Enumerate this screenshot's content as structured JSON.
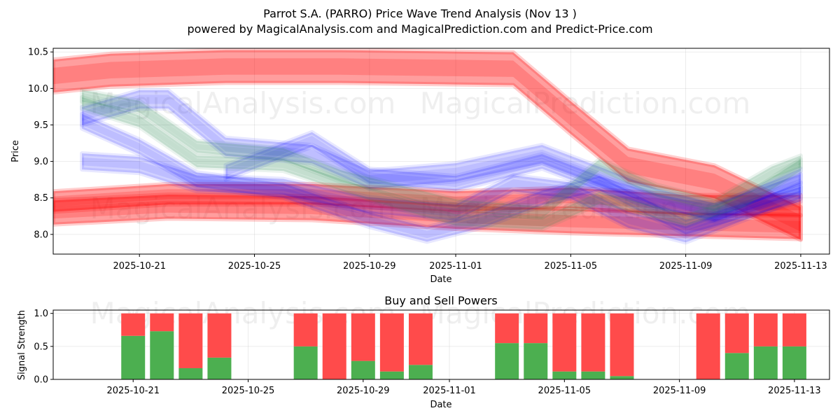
{
  "title_line1": "Parrot S.A. (PARRO) Price Wave Trend Analysis (Nov 13 )",
  "title_line2": "powered by MagicalAnalysis.com and MagicalPrediction.com and Predict-Price.com",
  "watermarks": [
    "MagicalAnalysis.com",
    "MagicalPrediction.com"
  ],
  "colors": {
    "red_band": "#ff0000",
    "blue_band": "#0000ff",
    "green_band": "#2e8b57",
    "buy": "#4caf50",
    "sell": "#ff4b4b"
  },
  "chart_data": [
    {
      "type": "area",
      "title": "",
      "xlabel": "Date",
      "ylabel": "Price",
      "xlim": [
        "2025-10-18",
        "2025-11-14"
      ],
      "ylim": [
        7.73,
        10.55
      ],
      "x_ticks": [
        "2025-10-21",
        "2025-10-25",
        "2025-10-29",
        "2025-11-01",
        "2025-11-05",
        "2025-11-09",
        "2025-11-13"
      ],
      "y_ticks": [
        8.0,
        8.5,
        9.0,
        9.5,
        10.0,
        10.5
      ],
      "grid": true,
      "series": [
        {
          "name": "Red wave (upper)",
          "color": "red",
          "width": 0.45,
          "points": [
            [
              "2025-10-18",
              10.17
            ],
            [
              "2025-10-20",
              10.25
            ],
            [
              "2025-10-24",
              10.3
            ],
            [
              "2025-10-28",
              10.3
            ],
            [
              "2025-11-01",
              10.28
            ],
            [
              "2025-11-03",
              10.27
            ],
            [
              "2025-11-05",
              9.6
            ],
            [
              "2025-11-07",
              8.95
            ],
            [
              "2025-11-10",
              8.72
            ],
            [
              "2025-11-13",
              8.15
            ]
          ]
        },
        {
          "name": "Red wave (lower)",
          "color": "red",
          "width": 0.33,
          "points": [
            [
              "2025-10-18",
              8.3
            ],
            [
              "2025-10-22",
              8.38
            ],
            [
              "2025-10-27",
              8.36
            ],
            [
              "2025-11-01",
              8.24
            ],
            [
              "2025-11-05",
              8.18
            ],
            [
              "2025-11-09",
              8.14
            ],
            [
              "2025-11-13",
              8.1
            ]
          ]
        },
        {
          "name": "Red wave (mid)",
          "color": "red",
          "width": 0.28,
          "points": [
            [
              "2025-10-18",
              8.45
            ],
            [
              "2025-10-22",
              8.55
            ],
            [
              "2025-10-27",
              8.55
            ],
            [
              "2025-11-01",
              8.45
            ],
            [
              "2025-11-05",
              8.5
            ],
            [
              "2025-11-09",
              8.4
            ],
            [
              "2025-11-13",
              8.4
            ]
          ]
        },
        {
          "name": "Blue wave 1",
          "color": "blue",
          "width": 0.25,
          "points": [
            [
              "2025-10-19",
              9.62
            ],
            [
              "2025-10-21",
              9.85
            ],
            [
              "2025-10-22",
              9.85
            ],
            [
              "2025-10-24",
              9.2
            ],
            [
              "2025-10-27",
              9.1
            ],
            [
              "2025-10-29",
              8.75
            ],
            [
              "2025-11-01",
              8.85
            ],
            [
              "2025-11-04",
              9.1
            ],
            [
              "2025-11-06",
              8.8
            ],
            [
              "2025-11-08",
              8.5
            ],
            [
              "2025-11-10",
              8.3
            ],
            [
              "2025-11-13",
              8.7
            ]
          ]
        },
        {
          "name": "Blue wave 2",
          "color": "blue",
          "width": 0.22,
          "points": [
            [
              "2025-10-19",
              9.0
            ],
            [
              "2025-10-21",
              8.95
            ],
            [
              "2025-10-23",
              8.7
            ],
            [
              "2025-10-26",
              8.65
            ],
            [
              "2025-10-29",
              8.4
            ],
            [
              "2025-11-01",
              8.3
            ],
            [
              "2025-11-03",
              8.7
            ],
            [
              "2025-11-05",
              8.6
            ],
            [
              "2025-11-07",
              8.2
            ],
            [
              "2025-11-09",
              8.0
            ],
            [
              "2025-11-13",
              8.6
            ]
          ]
        },
        {
          "name": "Blue wave 3",
          "color": "blue",
          "width": 0.2,
          "points": [
            [
              "2025-10-19",
              9.55
            ],
            [
              "2025-10-21",
              9.2
            ],
            [
              "2025-10-23",
              8.75
            ],
            [
              "2025-10-26",
              8.6
            ],
            [
              "2025-10-29",
              8.2
            ],
            [
              "2025-10-31",
              8.0
            ],
            [
              "2025-11-02",
              8.2
            ],
            [
              "2025-11-04",
              8.5
            ],
            [
              "2025-11-06",
              8.7
            ],
            [
              "2025-11-08",
              8.45
            ],
            [
              "2025-11-10",
              8.3
            ],
            [
              "2025-11-13",
              8.8
            ]
          ]
        },
        {
          "name": "Blue wave 4",
          "color": "blue",
          "width": 0.2,
          "points": [
            [
              "2025-10-24",
              8.85
            ],
            [
              "2025-10-27",
              9.3
            ],
            [
              "2025-10-29",
              8.8
            ],
            [
              "2025-11-01",
              8.7
            ],
            [
              "2025-11-04",
              9.0
            ],
            [
              "2025-11-06",
              8.7
            ],
            [
              "2025-11-09",
              8.1
            ],
            [
              "2025-11-13",
              8.55
            ]
          ]
        },
        {
          "name": "Green wave 1",
          "color": "green",
          "width": 0.16,
          "points": [
            [
              "2025-10-19",
              9.9
            ],
            [
              "2025-10-21",
              9.75
            ],
            [
              "2025-10-23",
              9.2
            ],
            [
              "2025-10-26",
              9.1
            ],
            [
              "2025-10-28",
              8.8
            ],
            [
              "2025-11-01",
              8.4
            ],
            [
              "2025-11-04",
              8.3
            ],
            [
              "2025-11-06",
              8.95
            ],
            [
              "2025-11-08",
              8.6
            ],
            [
              "2025-11-10",
              8.4
            ],
            [
              "2025-11-12",
              8.85
            ],
            [
              "2025-11-13",
              9.0
            ]
          ]
        },
        {
          "name": "Green wave 2",
          "color": "green",
          "width": 0.16,
          "points": [
            [
              "2025-10-19",
              9.8
            ],
            [
              "2025-10-21",
              9.55
            ],
            [
              "2025-10-23",
              9.0
            ],
            [
              "2025-10-26",
              8.95
            ],
            [
              "2025-10-29",
              8.55
            ],
            [
              "2025-11-01",
              8.2
            ],
            [
              "2025-11-04",
              8.15
            ],
            [
              "2025-11-06",
              8.5
            ],
            [
              "2025-11-09",
              8.2
            ],
            [
              "2025-11-11",
              8.45
            ],
            [
              "2025-11-13",
              8.95
            ]
          ]
        }
      ]
    },
    {
      "type": "bar",
      "title": "Buy and Sell Powers",
      "xlabel": "Date",
      "ylabel": "Signal Strength",
      "ylim": [
        0,
        1.05
      ],
      "y_ticks": [
        0.0,
        0.5,
        1.0
      ],
      "x_ticks": [
        "2025-10-21",
        "2025-10-25",
        "2025-10-29",
        "2025-11-01",
        "2025-11-05",
        "2025-11-09",
        "2025-11-13"
      ],
      "categories": [
        "2025-10-21",
        "2025-10-22",
        "2025-10-23",
        "2025-10-24",
        "2025-10-27",
        "2025-10-28",
        "2025-10-29",
        "2025-10-30",
        "2025-10-31",
        "2025-11-03",
        "2025-11-04",
        "2025-11-05",
        "2025-11-06",
        "2025-11-07",
        "2025-11-10",
        "2025-11-11",
        "2025-11-12",
        "2025-11-13"
      ],
      "series": [
        {
          "name": "Buy",
          "color": "green",
          "values": [
            0.66,
            0.73,
            0.17,
            0.33,
            0.5,
            0.0,
            0.28,
            0.12,
            0.22,
            0.55,
            0.55,
            0.12,
            0.12,
            0.05,
            0.0,
            0.4,
            0.5,
            0.5
          ]
        },
        {
          "name": "Sell",
          "color": "red",
          "values": [
            0.34,
            0.27,
            0.83,
            0.67,
            0.5,
            1.0,
            0.72,
            0.88,
            0.78,
            0.45,
            0.45,
            0.88,
            0.88,
            0.95,
            1.0,
            0.6,
            0.5,
            0.5
          ]
        }
      ]
    }
  ]
}
